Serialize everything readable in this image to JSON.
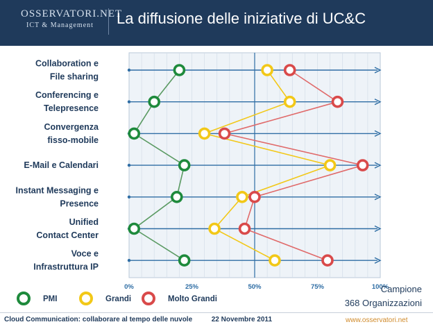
{
  "header": {
    "logo_top": "OSSERVATORI.NET",
    "logo_sub": "ICT & Management",
    "title": "La diffusione delle iniziative di UC&C"
  },
  "chart_data": {
    "type": "line",
    "orientation": "horizontal",
    "categories": [
      "Collaboration e File sharing",
      "Conferencing e Telepresence",
      "Convergenza fisso-mobile",
      "E-Mail e Calendari",
      "Instant Messaging e Presence",
      "Unified Contact Center",
      "Voce e Infrastruttura IP"
    ],
    "category_label_lines": [
      [
        "Collaboration e",
        "File sharing"
      ],
      [
        "Conferencing e",
        "Telepresence"
      ],
      [
        "Convergenza",
        "fisso-mobile"
      ],
      [
        "E-Mail e Calendari"
      ],
      [
        "Instant Messaging e",
        "Presence"
      ],
      [
        "Unified",
        "Contact Center"
      ],
      [
        "Voce e",
        "Infrastruttura IP"
      ]
    ],
    "series": [
      {
        "name": "PMI",
        "color": "#1e8a3c",
        "line_color": "#5a9a62",
        "values": [
          20,
          10,
          2,
          22,
          19,
          2,
          22
        ]
      },
      {
        "name": "Grandi",
        "color": "#f2c818",
        "line_color": "#f2c818",
        "values": [
          55,
          64,
          30,
          80,
          45,
          34,
          58
        ]
      },
      {
        "name": "Molto Grandi",
        "color": "#d94a4a",
        "line_color": "#e06a6a",
        "values": [
          64,
          83,
          38,
          93,
          50,
          46,
          79
        ]
      }
    ],
    "xlim": [
      0,
      100
    ],
    "xticks": [
      "0%",
      "25%",
      "50%",
      "75%",
      "100%"
    ],
    "reference_line": 50,
    "grid": true,
    "legend_position": "bottom-left",
    "sample_line1": "Campione",
    "sample_line2": "368 Organizzazioni"
  },
  "footer": {
    "left": "Cloud Communication: collaborare al tempo delle nuvole",
    "date": "22 Novembre 2011",
    "url": "www.osservatori.net"
  },
  "colors": {
    "header_bg": "#1f3a5b",
    "plot_bg": "#eef3f8",
    "axis": "#2e6da4"
  }
}
